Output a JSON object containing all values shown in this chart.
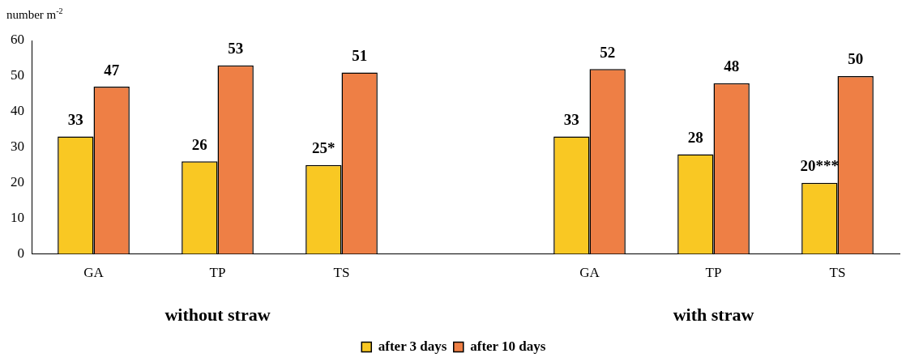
{
  "chart_data": {
    "type": "bar",
    "ylabel": "number m$^{-2}$",
    "categories": [
      "GA",
      "TP",
      "TS",
      null,
      "GA",
      "TP",
      "TS"
    ],
    "series": [
      {
        "name": "after 3 days",
        "color": "#f9c823",
        "values": [
          33,
          26,
          25,
          null,
          33,
          28,
          20
        ],
        "value_labels": [
          "33",
          "26",
          "25*",
          null,
          "33",
          "28",
          "20***"
        ]
      },
      {
        "name": "after 10 days",
        "color": "#ee7f45",
        "values": [
          47,
          53,
          51,
          null,
          52,
          48,
          50
        ],
        "value_labels": [
          "47",
          "53",
          "51",
          null,
          "52",
          "48",
          "50"
        ]
      }
    ],
    "annotations": [
      "without straw",
      "with straw"
    ],
    "ylim": [
      0,
      60
    ],
    "yticks": [
      0,
      10,
      20,
      30,
      40,
      50,
      60
    ],
    "grid": false,
    "legend": "bottom"
  }
}
